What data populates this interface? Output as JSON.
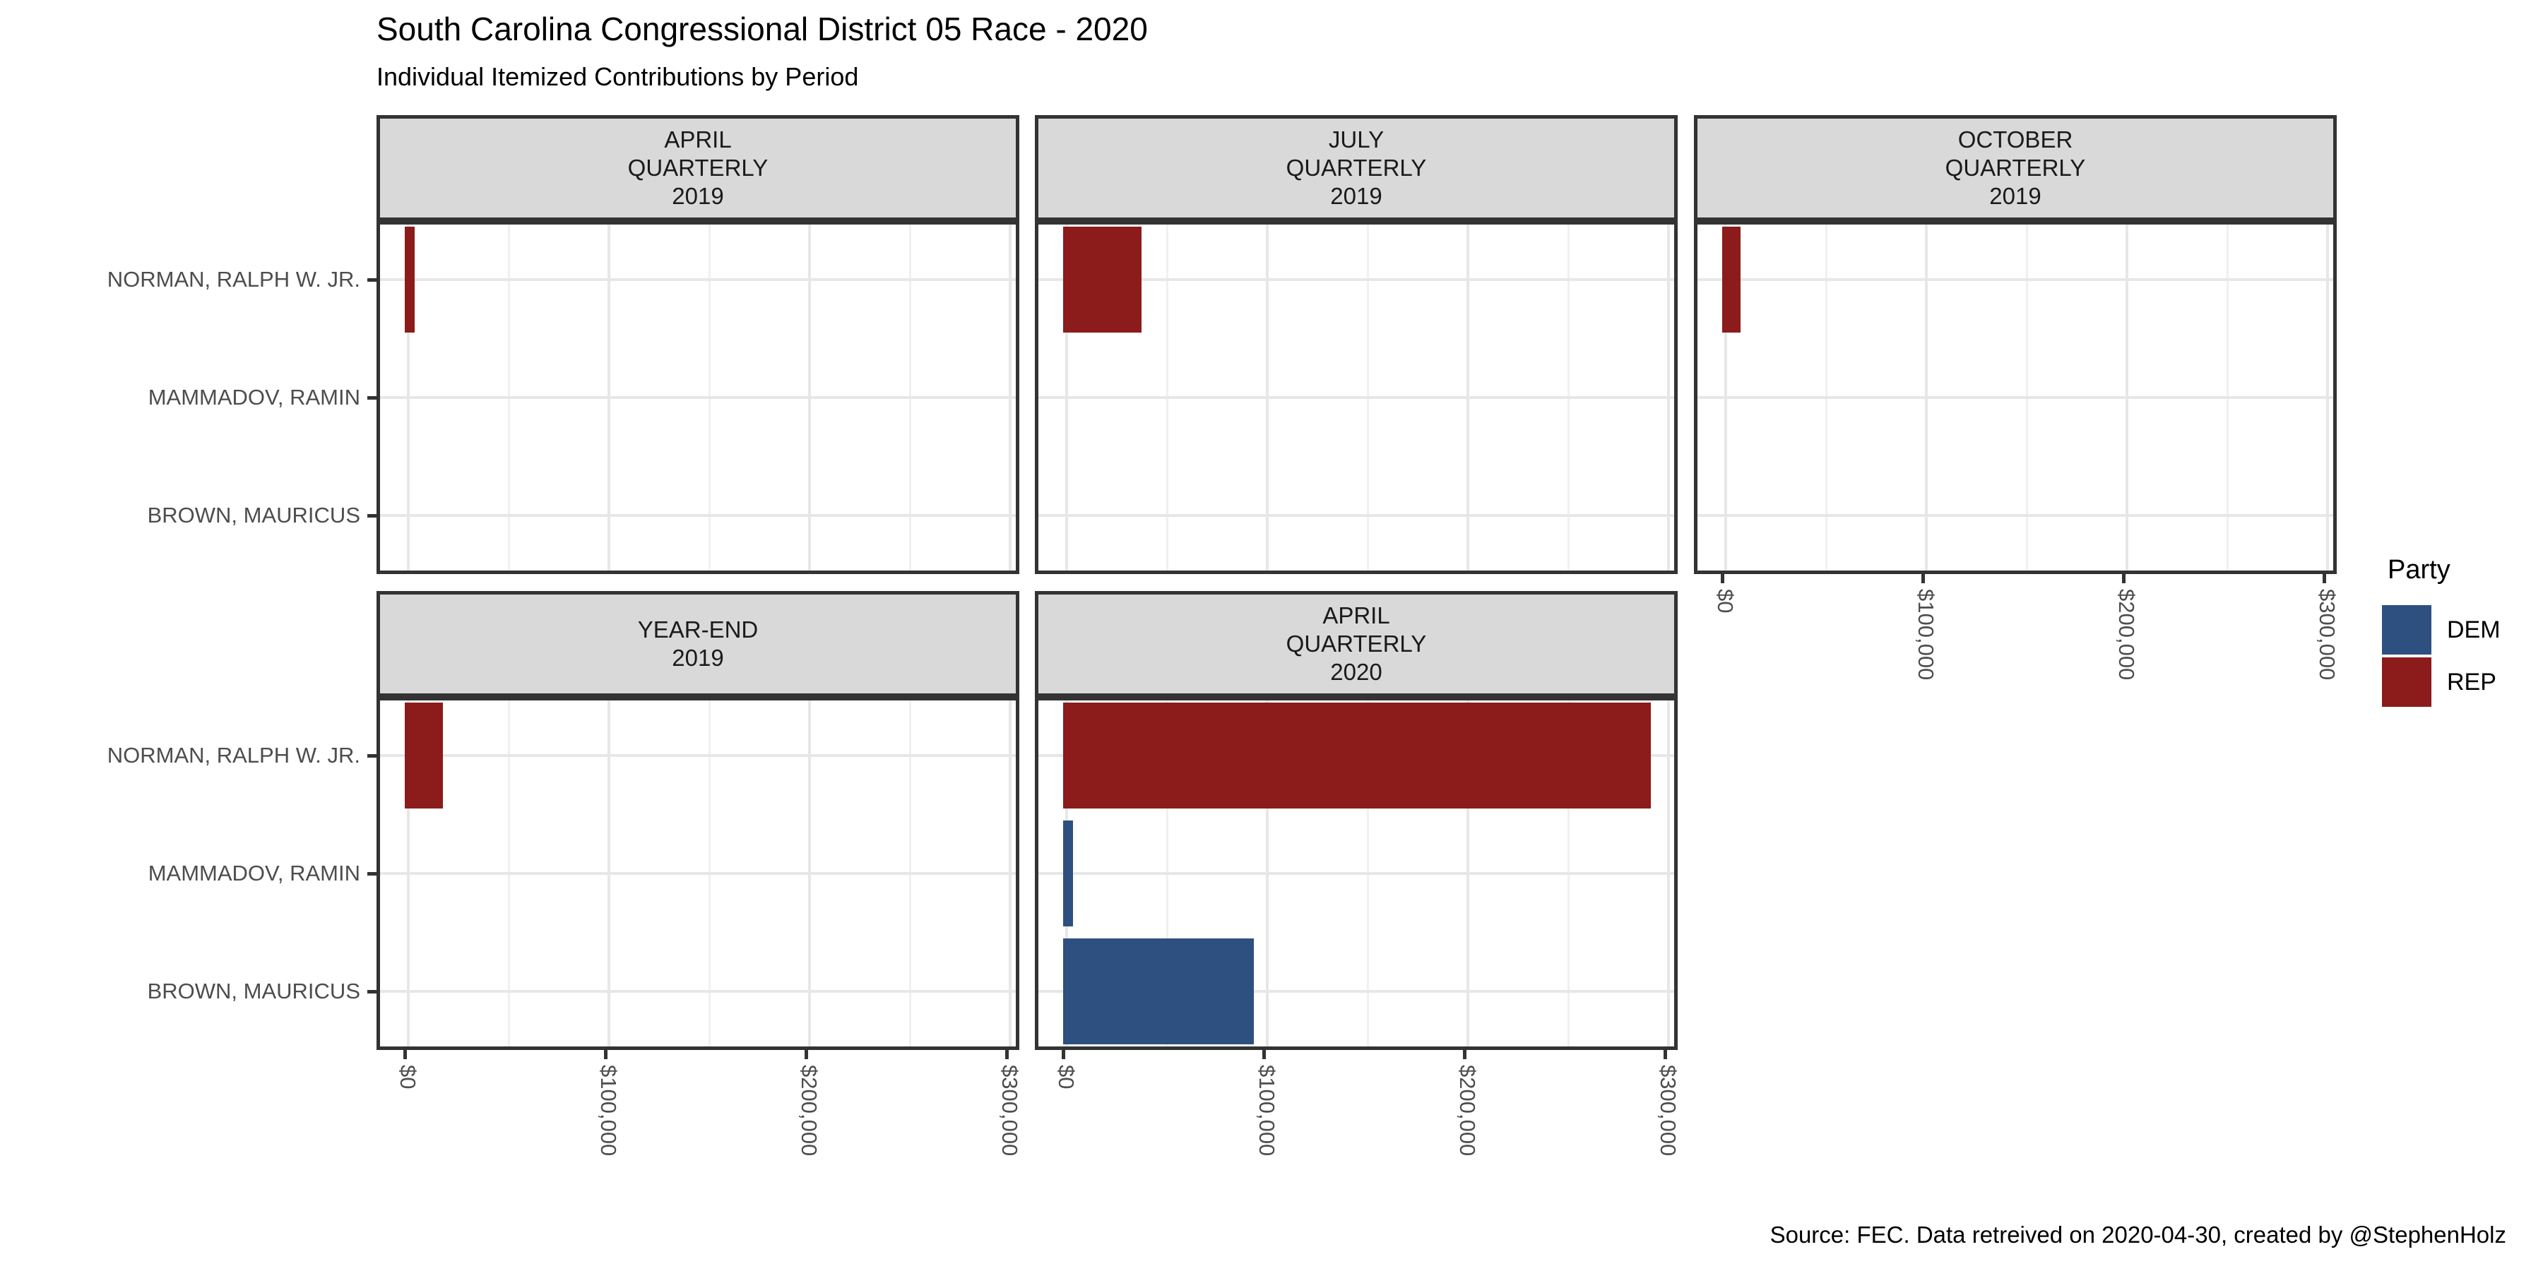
{
  "title": "South Carolina Congressional District 05 Race - 2020",
  "subtitle": "Individual Itemized Contributions by Period",
  "caption": "Source: FEC. Data retreived on 2020-04-30, created by @StephenHolz",
  "legend": {
    "title": "Party",
    "items": [
      {
        "label": "DEM",
        "color": "#2D5080"
      },
      {
        "label": "REP",
        "color": "#8C1B1B"
      }
    ]
  },
  "colors": {
    "strip_background": "#D9D9D9",
    "panel_border": "#333333",
    "grid_major": "#E7E7E7",
    "grid_minor": "#F0F0F0",
    "axis_text": "#4D4D4D",
    "dem": "#2D5080",
    "rep": "#8C1B1B"
  },
  "chart_data": {
    "type": "bar",
    "orientation": "horizontal",
    "title": "South Carolina Congressional District 05 Race - 2020",
    "subtitle": "Individual Itemized Contributions by Period",
    "categories": [
      "NORMAN, RALPH W. JR.",
      "MAMMADOV, RAMIN",
      "BROWN, MAURICUS"
    ],
    "category_parties": [
      "REP",
      "DEM",
      "DEM"
    ],
    "x_ticks": [
      "$0",
      "$100,000",
      "$200,000",
      "$300,000"
    ],
    "x_tick_values": [
      0,
      100000,
      200000,
      300000
    ],
    "xlim": [
      0,
      300000
    ],
    "grid": true,
    "legend_position": "right",
    "facets": [
      {
        "label_lines": [
          "APRIL",
          "QUARTERLY",
          "2019"
        ],
        "row": 0,
        "col": 0,
        "x_axis": false,
        "values": [
          5000,
          0,
          0
        ]
      },
      {
        "label_lines": [
          "JULY",
          "QUARTERLY",
          "2019"
        ],
        "row": 0,
        "col": 1,
        "x_axis": false,
        "values": [
          39000,
          0,
          0
        ]
      },
      {
        "label_lines": [
          "OCTOBER",
          "QUARTERLY",
          "2019"
        ],
        "row": 0,
        "col": 2,
        "x_axis": true,
        "values": [
          9000,
          0,
          0
        ]
      },
      {
        "label_lines": [
          "YEAR-END",
          "2019"
        ],
        "row": 1,
        "col": 0,
        "x_axis": true,
        "values": [
          19000,
          0,
          0
        ]
      },
      {
        "label_lines": [
          "APRIL",
          "QUARTERLY",
          "2020"
        ],
        "row": 1,
        "col": 1,
        "x_axis": true,
        "values": [
          293000,
          5000,
          95000
        ]
      }
    ]
  }
}
